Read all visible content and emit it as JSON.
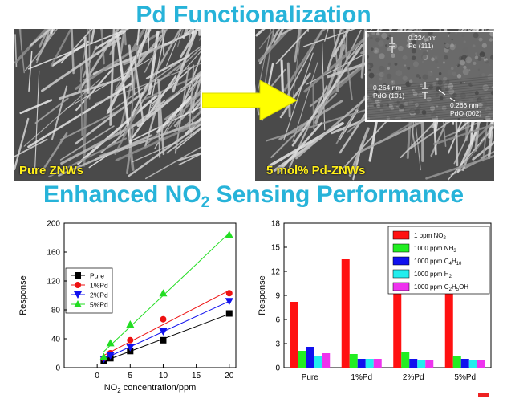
{
  "title_top": "Pd Functionalization",
  "title_bottom_main": "Enhanced NO",
  "title_bottom_sub": "2",
  "title_bottom_rest": " Sensing Performance",
  "images": {
    "left_label": "Pure ZNWs",
    "right_label": "5 mol%  Pd-ZNWs",
    "tem_labels": [
      {
        "l1": "0.224 nm",
        "l2": "Pd (111)"
      },
      {
        "l1": "0.264 nm",
        "l2": "PdO (101)"
      },
      {
        "l1": "0.266 nm",
        "l2": "PdO (002)"
      }
    ]
  },
  "colors": {
    "accent": "#27b3d9",
    "arrow": "#ffff00",
    "label": "#ffef1a"
  },
  "chart_data": [
    {
      "type": "line",
      "xlabel_main": "NO",
      "xlabel_sub": "2",
      "xlabel_rest": " concentration/ppm",
      "ylabel": "Response",
      "xlim": [
        -5,
        21
      ],
      "ylim": [
        0,
        200
      ],
      "xticks": [
        0,
        5,
        10,
        15,
        20
      ],
      "yticks": [
        0,
        40,
        80,
        120,
        160,
        200
      ],
      "legend_placement": "left",
      "series": [
        {
          "name": "Pure",
          "color": "#000000",
          "marker": "square",
          "x": [
            1,
            2,
            5,
            10,
            20
          ],
          "y": [
            9,
            13,
            23,
            38,
            75
          ]
        },
        {
          "name": "1%Pd",
          "color": "#ee1111",
          "marker": "circle",
          "x": [
            1,
            2,
            5,
            10,
            20
          ],
          "y": [
            13,
            20,
            38,
            67,
            103
          ]
        },
        {
          "name": "2%Pd",
          "color": "#1111ee",
          "marker": "triangle-down",
          "x": [
            1,
            2,
            5,
            10,
            20
          ],
          "y": [
            12,
            17,
            28,
            50,
            92
          ]
        },
        {
          "name": "5%Pd",
          "color": "#22dd22",
          "marker": "triangle-up",
          "x": [
            1,
            2,
            5,
            10,
            20
          ],
          "y": [
            15,
            34,
            60,
            103,
            184
          ]
        }
      ]
    },
    {
      "type": "bar",
      "ylabel": "Response",
      "ylim": [
        0,
        18
      ],
      "yticks": [
        0,
        3,
        6,
        9,
        12,
        15,
        18
      ],
      "categories": [
        "Pure",
        "1%Pd",
        "2%Pd",
        "5%Pd"
      ],
      "legend_placement": "top-right",
      "series": [
        {
          "name": "1 ppm NO",
          "sub": "2",
          "color": "#ff1111",
          "values": [
            8.2,
            13.5,
            9.4,
            9.4
          ]
        },
        {
          "name": "1000 ppm NH",
          "sub": "3",
          "color": "#22ee22",
          "values": [
            2.1,
            1.7,
            1.9,
            1.5
          ]
        },
        {
          "name": "1000 ppm C",
          "sub": "4",
          "tail": "H",
          "sub2": "10",
          "color": "#1111ee",
          "values": [
            2.6,
            1.1,
            1.1,
            1.1
          ]
        },
        {
          "name": "1000 ppm H",
          "sub": "2",
          "color": "#22eeee",
          "values": [
            1.5,
            1.1,
            1.0,
            1.0
          ]
        },
        {
          "name": "1000 ppm C",
          "sub": "2",
          "tail": "H",
          "sub2": "5",
          "tail2": "OH",
          "color": "#ee33ee",
          "values": [
            1.8,
            1.1,
            1.0,
            1.0
          ]
        }
      ]
    }
  ]
}
